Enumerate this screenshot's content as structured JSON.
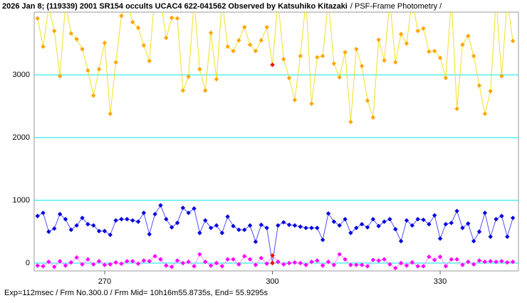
{
  "chart_data": {
    "type": "line",
    "title": "2026 Jan 8; (119339) 2001 SR154 occults UCAC4 622-041562 Observed by Katsuhiko Kitazaki",
    "subtitle": "/ PSF-Frame Photometry /",
    "footer": "Exp=112msec / Frm No.300.0 / Frm Mid= 10h16m55.8735s, End= 55.9295s",
    "x": [
      258,
      259,
      260,
      261,
      262,
      263,
      264,
      265,
      266,
      267,
      268,
      269,
      270,
      271,
      272,
      273,
      274,
      275,
      276,
      277,
      278,
      279,
      280,
      281,
      282,
      283,
      284,
      285,
      286,
      287,
      288,
      289,
      290,
      291,
      292,
      293,
      294,
      295,
      296,
      297,
      298,
      299,
      300,
      301,
      302,
      303,
      304,
      305,
      306,
      307,
      308,
      309,
      310,
      311,
      312,
      313,
      314,
      315,
      316,
      317,
      318,
      319,
      320,
      321,
      322,
      323,
      324,
      325,
      326,
      327,
      328,
      329,
      330,
      331,
      332,
      333,
      334,
      335,
      336,
      337,
      338,
      339,
      340,
      341,
      342,
      343
    ],
    "series": [
      {
        "color": "#f0e020",
        "marker_color": "#ffa500",
        "values": [
          3900,
          3450,
          4080,
          3700,
          2980,
          4140,
          3660,
          3570,
          3410,
          3070,
          2670,
          3090,
          3510,
          2380,
          3200,
          3940,
          4170,
          3840,
          3750,
          3470,
          3220,
          4300,
          4190,
          3590,
          3910,
          3900,
          2750,
          2970,
          4190,
          3090,
          2750,
          3670,
          2930,
          4190,
          3450,
          3380,
          3550,
          3760,
          3480,
          3380,
          3550,
          3760,
          3160,
          4190,
          3250,
          2950,
          2600,
          3300,
          4190,
          2540,
          3280,
          3300,
          4190,
          3180,
          2960,
          3360,
          2250,
          3410,
          3140,
          2590,
          2320,
          3560,
          3230,
          4190,
          3200,
          3650,
          3500,
          4190,
          3700,
          3740,
          3370,
          3380,
          3270,
          2950,
          4190,
          2460,
          3480,
          3620,
          3300,
          2830,
          2380,
          2740,
          4190,
          2980,
          4190,
          3540
        ]
      },
      {
        "color": "#5050ff",
        "marker_color": "#0000dd",
        "values": [
          750,
          800,
          500,
          550,
          780,
          700,
          530,
          600,
          720,
          620,
          600,
          510,
          510,
          450,
          680,
          700,
          700,
          680,
          660,
          800,
          460,
          780,
          920,
          700,
          570,
          640,
          880,
          800,
          870,
          480,
          680,
          560,
          600,
          480,
          740,
          590,
          530,
          530,
          600,
          340,
          610,
          560,
          0,
          600,
          650,
          610,
          600,
          580,
          560,
          560,
          560,
          370,
          790,
          660,
          600,
          700,
          480,
          560,
          620,
          570,
          700,
          590,
          660,
          700,
          540,
          350,
          680,
          600,
          700,
          690,
          620,
          760,
          390,
          620,
          640,
          830,
          560,
          630,
          350,
          500,
          800,
          420,
          700,
          750,
          420,
          720
        ]
      },
      {
        "color": "#ff90ff",
        "marker_color": "#ff00ff",
        "values": [
          -40,
          -50,
          20,
          -60,
          30,
          -40,
          10,
          90,
          -20,
          60,
          -20,
          30,
          -30,
          -20,
          10,
          -10,
          30,
          30,
          -10,
          40,
          30,
          110,
          60,
          -40,
          -60,
          40,
          0,
          20,
          -50,
          140,
          20,
          -40,
          0,
          -50,
          60,
          60,
          -20,
          110,
          60,
          -30,
          80,
          -10,
          120,
          20,
          -20,
          0,
          10,
          0,
          -30,
          20,
          40,
          -40,
          20,
          -30,
          140,
          60,
          -30,
          -30,
          -30,
          -50,
          50,
          40,
          60,
          -20,
          -80,
          0,
          -40,
          10,
          -50,
          -50,
          100,
          50,
          100,
          -50,
          60,
          60,
          -30,
          20,
          -20,
          40,
          20,
          30,
          20,
          30,
          10,
          20
        ]
      }
    ],
    "highlight_x": 300,
    "highlight_color": "#ff0000",
    "xlim": [
      257.4,
      344
    ],
    "xticks": [
      270,
      300,
      330
    ],
    "ylim": [
      -125,
      4000
    ],
    "yticks": [
      0,
      1000,
      2000,
      3000
    ],
    "grid": true,
    "grid_color": "#00e5ee"
  }
}
